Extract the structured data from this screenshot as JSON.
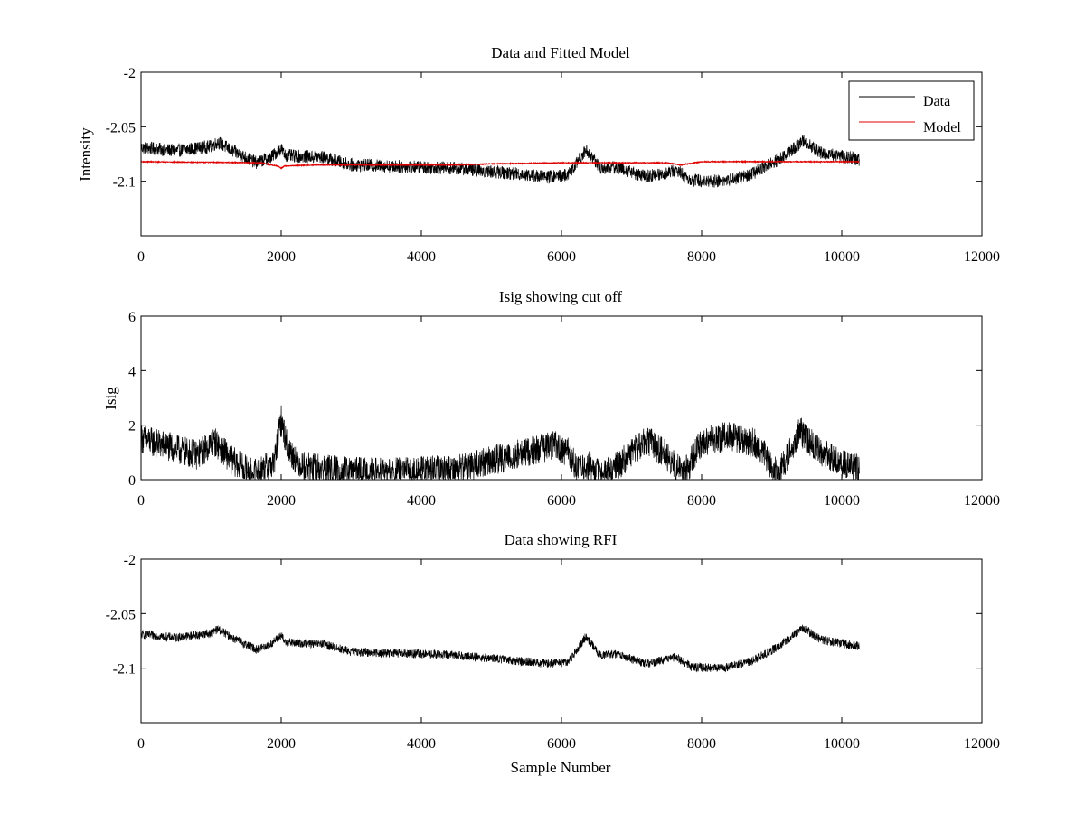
{
  "chart_data": [
    {
      "type": "line",
      "title": "Data and Fitted Model",
      "xlabel": "",
      "ylabel": "Intensity",
      "xlim": [
        0,
        12000
      ],
      "ylim": [
        -2.15,
        -2.0
      ],
      "xticks": [
        0,
        2000,
        4000,
        6000,
        8000,
        10000,
        12000
      ],
      "xtick_labels": [
        "0",
        "2000",
        "4000",
        "6000",
        "8000",
        "10000",
        "12000"
      ],
      "yticks": [
        -2.0,
        -2.05,
        -2.1
      ],
      "ytick_labels": [
        "-2",
        "-2.05",
        "-2.1"
      ],
      "legend": {
        "position": "top-right",
        "entries": [
          "Data",
          "Model"
        ]
      },
      "series": [
        {
          "name": "Data",
          "color": "#000000",
          "noise_amplitude": 0.006,
          "x": [
            0,
            500,
            1000,
            1100,
            1300,
            1650,
            1850,
            2000,
            2050,
            2200,
            2600,
            3000,
            3500,
            4000,
            4500,
            5000,
            5500,
            5800,
            6100,
            6350,
            6550,
            6800,
            7200,
            7650,
            7850,
            8300,
            8700,
            9100,
            9450,
            9700,
            10250
          ],
          "y": [
            -2.069,
            -2.072,
            -2.068,
            -2.064,
            -2.072,
            -2.083,
            -2.078,
            -2.07,
            -2.076,
            -2.077,
            -2.078,
            -2.085,
            -2.086,
            -2.087,
            -2.088,
            -2.091,
            -2.094,
            -2.096,
            -2.094,
            -2.071,
            -2.088,
            -2.087,
            -2.096,
            -2.09,
            -2.099,
            -2.1,
            -2.094,
            -2.08,
            -2.063,
            -2.074,
            -2.08
          ]
        },
        {
          "name": "Model",
          "color": "#e00000",
          "noise_amplitude": 0.0004,
          "x": [
            0,
            1700,
            1950,
            2000,
            2050,
            2500,
            4500,
            5000,
            6000,
            7000,
            7500,
            7700,
            7900,
            8000,
            10250
          ],
          "y": [
            -2.082,
            -2.083,
            -2.086,
            -2.088,
            -2.086,
            -2.085,
            -2.085,
            -2.084,
            -2.083,
            -2.083,
            -2.083,
            -2.085,
            -2.083,
            -2.082,
            -2.082
          ]
        }
      ]
    },
    {
      "type": "line",
      "title": "Isig showing cut off",
      "xlabel": "",
      "ylabel": "Isig",
      "xlim": [
        0,
        12000
      ],
      "ylim": [
        0,
        6
      ],
      "xticks": [
        0,
        2000,
        4000,
        6000,
        8000,
        10000,
        12000
      ],
      "xtick_labels": [
        "0",
        "2000",
        "4000",
        "6000",
        "8000",
        "10000",
        "12000"
      ],
      "yticks": [
        0,
        2,
        4,
        6
      ],
      "ytick_labels": [
        "0",
        "2",
        "4",
        "6"
      ],
      "series": [
        {
          "color": "#000000",
          "noise_amplitude": 0.55,
          "x": [
            0,
            400,
            800,
            1050,
            1300,
            1600,
            1900,
            2000,
            2100,
            2300,
            2600,
            3000,
            3500,
            4000,
            4500,
            5000,
            5500,
            5900,
            6100,
            6250,
            6400,
            6550,
            6800,
            7200,
            7500,
            7750,
            8000,
            8400,
            8800,
            9000,
            9100,
            9400,
            9700,
            10000,
            10250
          ],
          "y": [
            1.5,
            1.2,
            0.9,
            1.4,
            0.7,
            0.2,
            0.6,
            2.2,
            1.1,
            0.5,
            0.4,
            0.3,
            0.25,
            0.3,
            0.4,
            0.7,
            1.0,
            1.3,
            1.0,
            0.3,
            0.5,
            0.15,
            0.5,
            1.5,
            0.9,
            0.2,
            1.4,
            1.6,
            1.3,
            0.5,
            0.2,
            1.8,
            1.0,
            0.6,
            0.4
          ]
        }
      ]
    },
    {
      "type": "line",
      "title": "Data showing RFI",
      "xlabel": "Sample Number",
      "ylabel": "",
      "xlim": [
        0,
        12000
      ],
      "ylim": [
        -2.15,
        -2.0
      ],
      "xticks": [
        0,
        2000,
        4000,
        6000,
        8000,
        10000,
        12000
      ],
      "xtick_labels": [
        "0",
        "2000",
        "4000",
        "6000",
        "8000",
        "10000",
        "12000"
      ],
      "yticks": [
        -2.0,
        -2.05,
        -2.1
      ],
      "ytick_labels": [
        "-2",
        "-2.05",
        "-2.1"
      ],
      "series": [
        {
          "color": "#000000",
          "noise_amplitude": 0.004,
          "x": [
            0,
            500,
            1000,
            1100,
            1300,
            1650,
            1850,
            2000,
            2050,
            2200,
            2600,
            3000,
            3500,
            4000,
            4500,
            5000,
            5500,
            5800,
            6100,
            6350,
            6550,
            6800,
            7200,
            7650,
            7850,
            8300,
            8700,
            9100,
            9450,
            9700,
            10250
          ],
          "y": [
            -2.069,
            -2.072,
            -2.068,
            -2.064,
            -2.072,
            -2.083,
            -2.078,
            -2.07,
            -2.076,
            -2.077,
            -2.078,
            -2.085,
            -2.086,
            -2.087,
            -2.088,
            -2.091,
            -2.094,
            -2.096,
            -2.094,
            -2.071,
            -2.088,
            -2.087,
            -2.096,
            -2.09,
            -2.099,
            -2.1,
            -2.094,
            -2.08,
            -2.063,
            -2.074,
            -2.08
          ]
        }
      ]
    }
  ]
}
